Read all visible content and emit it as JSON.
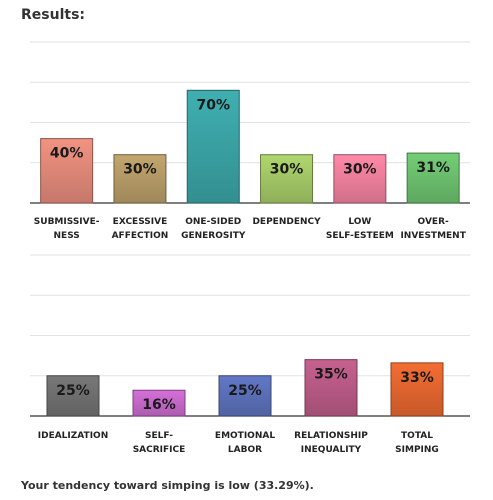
{
  "heading": "Results:",
  "summary": "Your tendency toward simping is low (33.29%).",
  "chart_data": [
    {
      "type": "bar",
      "title": "",
      "xlabel": "",
      "ylabel": "",
      "ylim": [
        0,
        100
      ],
      "grid": true,
      "categories": [
        [
          "SUBMISSIVE-",
          "NESS"
        ],
        [
          "EXCESSIVE",
          "AFFECTION"
        ],
        [
          "ONE-SIDED",
          "GENEROSITY"
        ],
        [
          "DEPENDENCY"
        ],
        [
          "LOW",
          "SELF-ESTEEM"
        ],
        [
          "OVER-",
          "INVESTMENT"
        ]
      ],
      "values": [
        40,
        30,
        70,
        30,
        30,
        31
      ],
      "labels": [
        "40%",
        "30%",
        "70%",
        "30%",
        "30%",
        "31%"
      ],
      "colors": [
        "#e08878",
        "#b59a66",
        "#3aa2a4",
        "#a3c766",
        "#ec7f9c",
        "#6bbf6d"
      ]
    },
    {
      "type": "bar",
      "title": "",
      "xlabel": "",
      "ylabel": "",
      "ylim": [
        0,
        100
      ],
      "grid": true,
      "categories": [
        [
          "IDEALIZATION"
        ],
        [
          "SELF-",
          "SACRIFICE"
        ],
        [
          "EMOTIONAL",
          "LABOR"
        ],
        [
          "RELATIONSHIP",
          "INEQUALITY"
        ],
        [
          "TOTAL",
          "SIMPING"
        ]
      ],
      "values": [
        25,
        16,
        25,
        35,
        33
      ],
      "labels": [
        "25%",
        "16%",
        "25%",
        "35%",
        "33%"
      ],
      "colors": [
        "#6f6f6f",
        "#c568c9",
        "#5b6fb8",
        "#b85a85",
        "#e2652f"
      ]
    }
  ]
}
